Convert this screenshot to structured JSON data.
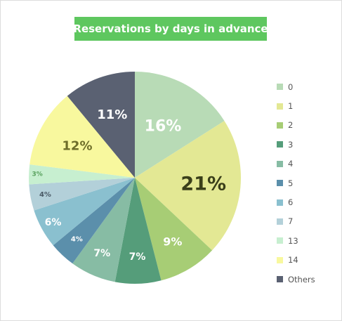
{
  "chart_data": {
    "type": "pie",
    "title": "Reservations by days in advance",
    "categories": [
      "0",
      "1",
      "2",
      "3",
      "4",
      "5",
      "6",
      "7",
      "13",
      "14",
      "Others"
    ],
    "values": [
      16,
      21,
      9,
      7,
      7,
      4,
      6,
      4,
      3,
      12,
      11
    ],
    "data_labels": [
      "16%",
      "21%",
      "9%",
      "7%",
      "7%",
      "4%",
      "6%",
      "4%",
      "3%",
      "12%",
      "11%"
    ],
    "colors": [
      "#b8dbb6",
      "#e3e894",
      "#a7cd75",
      "#559d7a",
      "#87bca4",
      "#5b8fab",
      "#8ac0cf",
      "#b3d0d9",
      "#c7efd0",
      "#f8f89e",
      "#5a6172"
    ],
    "label_colors": [
      "#ffffff",
      "#3a3f1a",
      "#ffffff",
      "#ffffff",
      "#ffffff",
      "#ffffff",
      "#ffffff",
      "#4a5a66",
      "#5aa25f",
      "#6e6e2a",
      "#ffffff"
    ],
    "legend_position": "right",
    "start_angle_deg": 0,
    "direction": "clockwise"
  }
}
